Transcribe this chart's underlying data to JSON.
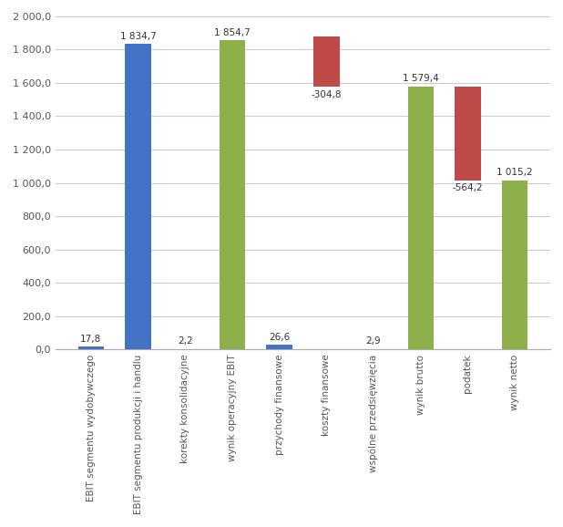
{
  "categories": [
    "EBIT segmentu wydobywczego",
    "EBIT segmentu produkcji i handlu",
    "korekty konsolidacyjne",
    "wynik operacyjny EBIT",
    "przychody finansowe",
    "koszty finansowe",
    "wspólne przedsięwzięcia",
    "wynik brutto",
    "podatek",
    "wynik netto"
  ],
  "values": [
    17.8,
    1834.7,
    2.2,
    1854.7,
    26.6,
    -304.8,
    2.9,
    1579.4,
    -564.2,
    1015.2
  ],
  "labels": [
    "17,8",
    "1 834,7",
    "2,2",
    "1 854,7",
    "26,6",
    "-304,8",
    "2,9",
    "1 579,4",
    "-564,2",
    "1 015,2"
  ],
  "colors": [
    "#4472C4",
    "#4472C4",
    "#4472C4",
    "#8DB04A",
    "#4472C4",
    "#BE4B48",
    "#4472C4",
    "#8DB04A",
    "#BE4B48",
    "#8DB04A"
  ],
  "bar_tops": [
    17.8,
    1834.7,
    2.2,
    1854.7,
    26.6,
    1881.3,
    2.9,
    1579.4,
    1579.4,
    1015.2
  ],
  "bar_bottoms": [
    0,
    0,
    0,
    0,
    0,
    1576.5,
    0,
    0,
    1015.2,
    0
  ],
  "ylim": [
    0,
    2000
  ],
  "yticks": [
    0,
    200,
    400,
    600,
    800,
    1000,
    1200,
    1400,
    1600,
    1800,
    2000
  ],
  "ytick_labels": [
    "0,0",
    "200,0",
    "400,0",
    "600,0",
    "800,0",
    "1 000,0",
    "1 200,0",
    "1 400,0",
    "1 600,0",
    "1 800,0",
    "2 000,0"
  ],
  "background_color": "#FFFFFF",
  "grid_color": "#CCCCCC",
  "bar_width": 0.55,
  "label_va": [
    "bottom",
    "bottom",
    "bottom",
    "bottom",
    "bottom",
    "top",
    "bottom",
    "bottom",
    "top",
    "bottom"
  ]
}
